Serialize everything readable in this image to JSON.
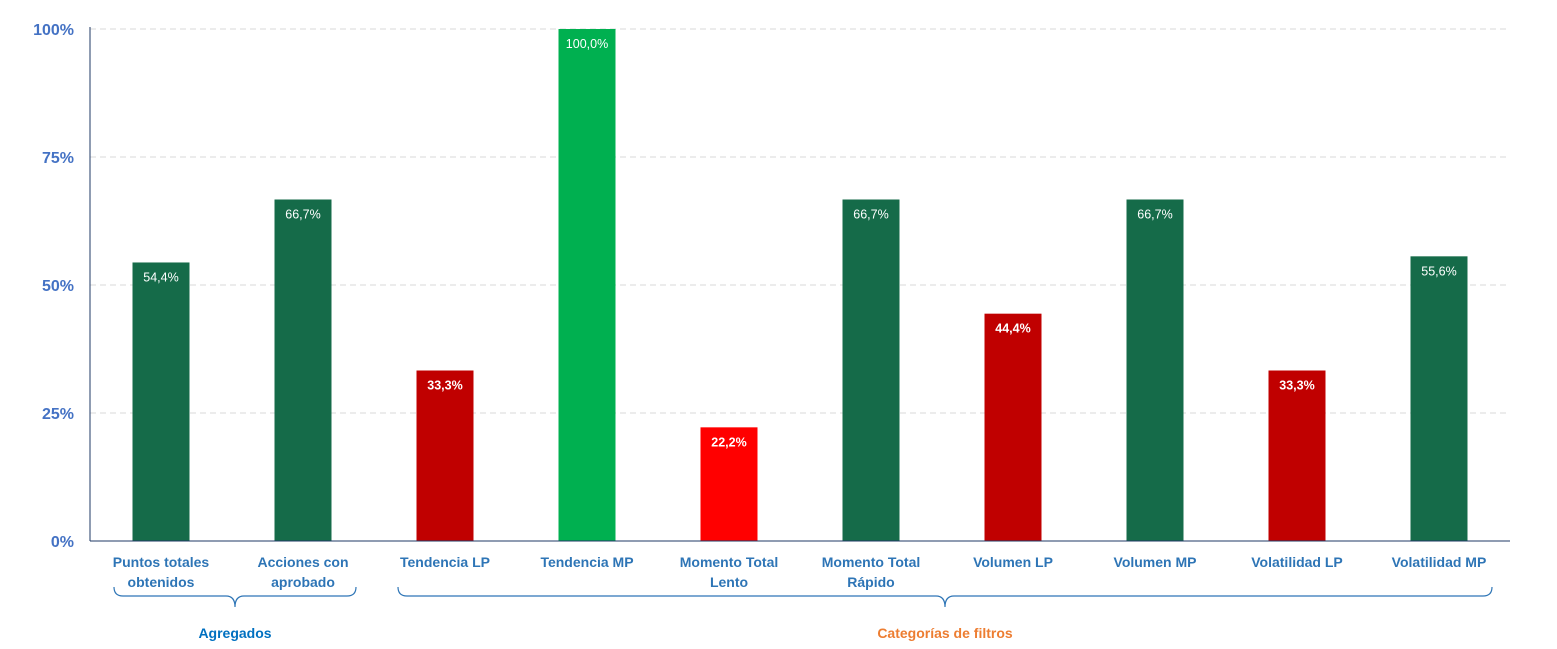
{
  "chart_data": {
    "type": "bar",
    "categories": [
      "Puntos totales obtenidos",
      "Acciones con aprobado",
      "Tendencia LP",
      "Tendencia MP",
      "Momento Total Lento",
      "Momento Total Rápido",
      "Volumen LP",
      "Volumen MP",
      "Volatilidad LP",
      "Volatilidad MP"
    ],
    "category_lines": [
      [
        "Puntos totales",
        "obtenidos"
      ],
      [
        "Acciones con",
        "aprobado"
      ],
      [
        "Tendencia LP"
      ],
      [
        "Tendencia MP"
      ],
      [
        "Momento Total",
        "Lento"
      ],
      [
        "Momento Total",
        "Rápido"
      ],
      [
        "Volumen LP"
      ],
      [
        "Volumen MP"
      ],
      [
        "Volatilidad LP"
      ],
      [
        "Volatilidad MP"
      ]
    ],
    "values": [
      54.4,
      66.7,
      33.3,
      100.0,
      22.2,
      66.7,
      44.4,
      66.7,
      33.3,
      55.6
    ],
    "data_labels": [
      "54,4%",
      "66,7%",
      "33,3%",
      "100,0%",
      "22,2%",
      "66,7%",
      "44,4%",
      "66,7%",
      "33,3%",
      "55,6%"
    ],
    "bar_colors": [
      "#156B49",
      "#156B49",
      "#C00000",
      "#00B050",
      "#FF0000",
      "#156B49",
      "#C00000",
      "#156B49",
      "#C00000",
      "#156B49"
    ],
    "yticks": [
      "0%",
      "25%",
      "50%",
      "75%",
      "100%"
    ],
    "ylim": [
      0,
      100
    ],
    "grid": true,
    "groups": [
      {
        "label": "Agregados",
        "from": 0,
        "to": 1,
        "color": "#0070C0"
      },
      {
        "label": "Categorías  de filtros",
        "from": 2,
        "to": 9,
        "color": "#ED7D31"
      }
    ],
    "colors": {
      "axis_text": "#4472C4",
      "category_text": "#2E75B6",
      "bracket": "#2E75B6",
      "gridline": "#D9D9D9",
      "axis_line": "#1F3864"
    }
  }
}
